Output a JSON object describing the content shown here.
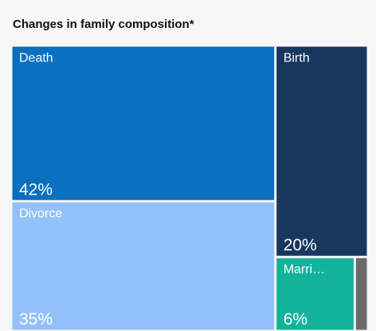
{
  "chart_data": {
    "type": "treemap",
    "title": "Changes in family composition*",
    "categories": [
      "Death",
      "Divorce",
      "Birth",
      "Marri…",
      null
    ],
    "values": [
      42,
      35,
      20,
      6,
      1
    ],
    "value_labels": [
      "42%",
      "35%",
      "20%",
      "6%",
      null
    ],
    "colors": [
      "#0a6fbe",
      "#93c0fb",
      "#17375e",
      "#13b39b",
      "#6a6a6a"
    ]
  }
}
